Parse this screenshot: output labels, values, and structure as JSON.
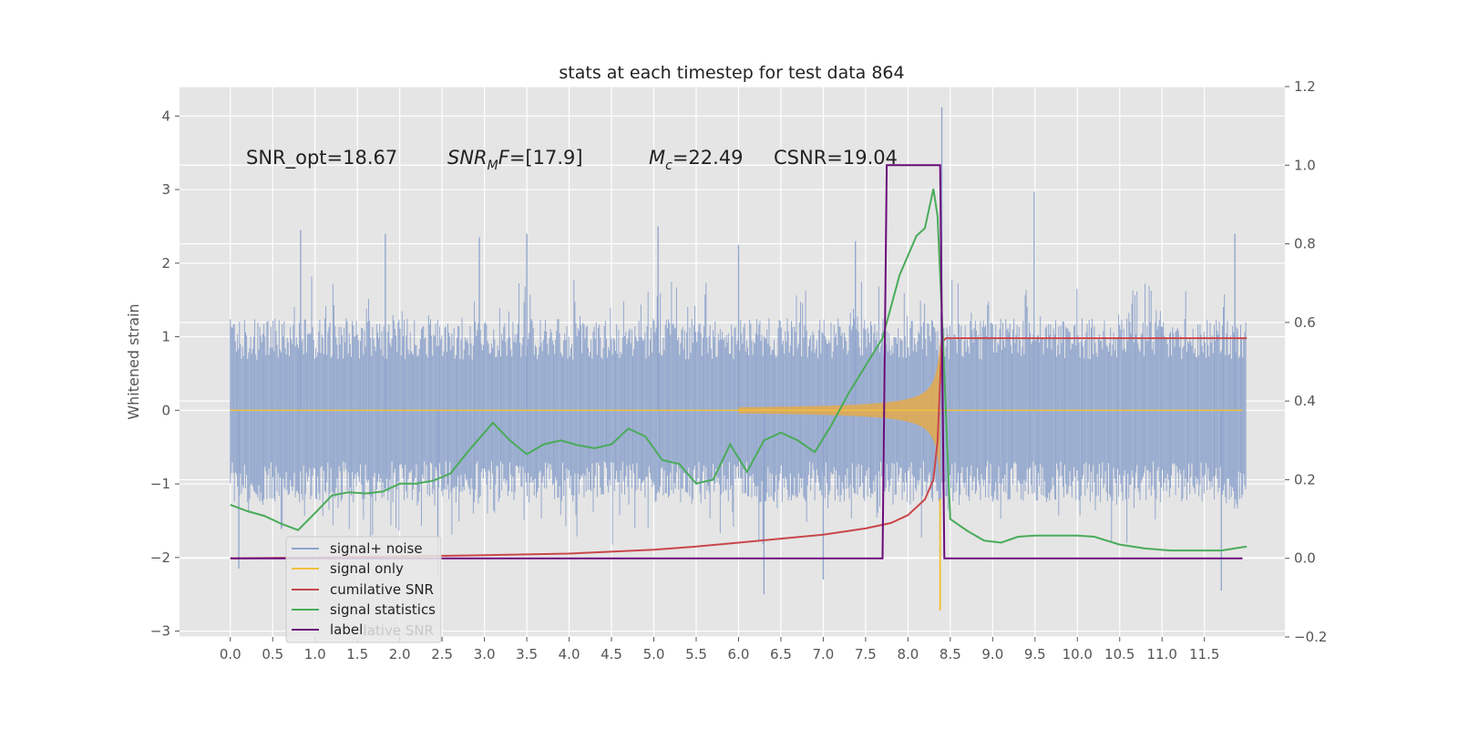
{
  "chart_data": {
    "type": "line",
    "title": "stats at each timestep for test data 864",
    "ylabel": "Whitened strain",
    "xlabel": "",
    "xlim": [
      -0.6,
      12.45
    ],
    "ylim": [
      -3.08,
      4.4
    ],
    "ylim_right": [
      -0.2,
      1.2
    ],
    "x_ticks": [
      "0.0",
      "0.5",
      "1.0",
      "1.5",
      "2.0",
      "2.5",
      "3.0",
      "3.5",
      "4.0",
      "4.5",
      "5.0",
      "5.5",
      "6.0",
      "6.5",
      "7.0",
      "7.5",
      "8.0",
      "8.5",
      "9.0",
      "9.5",
      "10.0",
      "10.5",
      "11.0",
      "11.5"
    ],
    "y_ticks": [
      "4",
      "3",
      "2",
      "1",
      "0",
      "−1",
      "−2",
      "−3"
    ],
    "y_ticks_right": [
      "1.2",
      "1.0",
      "0.8",
      "0.6",
      "0.4",
      "0.2",
      "0.0",
      "−0.2"
    ],
    "grid": true,
    "legend_position": "lower-left",
    "annotations": {
      "snr_opt": "SNR_opt=18.67",
      "snr_mf": "=[17.9]",
      "mc": "=22.49",
      "csnr": "CSNR=19.04"
    },
    "legend": [
      {
        "label": "signal+ noise",
        "color": "#8ea3cb"
      },
      {
        "label": "signal only",
        "color": "#f0c040"
      },
      {
        "label": "cumilative SNR",
        "color": "#c8474a"
      },
      {
        "label": "signal statistics",
        "color": "#4aab5a"
      },
      {
        "label": "label",
        "color": "#6a0a7a"
      }
    ],
    "legend_underlay": "cumilative SNR",
    "series": [
      {
        "name": "signal+ noise",
        "axis": "left",
        "color": "#8ea3cb",
        "description_values": {
          "t_start": 0.0,
          "t_end": 12.0,
          "typical_upper": 1.25,
          "typical_lower": -1.25
        },
        "spikes": [
          [
            0.83,
            2.45
          ],
          [
            1.83,
            2.4
          ],
          [
            2.94,
            2.35
          ],
          [
            3.5,
            2.4
          ],
          [
            5.05,
            2.5
          ],
          [
            6.0,
            2.25
          ],
          [
            7.38,
            2.3
          ],
          [
            8.4,
            4.12
          ],
          [
            9.49,
            2.97
          ],
          [
            11.86,
            2.4
          ],
          [
            6.3,
            -2.5
          ],
          [
            7.0,
            -2.3
          ],
          [
            11.7,
            -2.45
          ],
          [
            2.45,
            -2.25
          ],
          [
            0.1,
            -2.15
          ]
        ]
      },
      {
        "name": "signal only",
        "axis": "left",
        "color": "#f0c040",
        "chirp": {
          "t_merger": 8.38,
          "peak_amplitude": 1.25,
          "min": -2.72
        }
      },
      {
        "name": "cumilative SNR",
        "axis": "right",
        "color": "#c8474a",
        "x": [
          0.0,
          1.0,
          2.0,
          3.0,
          4.0,
          5.0,
          5.5,
          6.0,
          6.5,
          7.0,
          7.5,
          7.8,
          8.0,
          8.1,
          8.2,
          8.3,
          8.35,
          8.4,
          8.45,
          12.0
        ],
        "y": [
          0.0,
          0.002,
          0.005,
          0.008,
          0.012,
          0.022,
          0.03,
          0.04,
          0.05,
          0.06,
          0.076,
          0.09,
          0.11,
          0.13,
          0.15,
          0.2,
          0.3,
          0.55,
          0.56,
          0.56
        ]
      },
      {
        "name": "signal statistics",
        "axis": "right",
        "color": "#4aab5a",
        "x": [
          0.0,
          0.2,
          0.4,
          0.6,
          0.8,
          1.0,
          1.2,
          1.4,
          1.6,
          1.8,
          2.0,
          2.2,
          2.4,
          2.6,
          2.8,
          3.0,
          3.1,
          3.3,
          3.5,
          3.7,
          3.9,
          4.1,
          4.3,
          4.5,
          4.7,
          4.9,
          5.1,
          5.3,
          5.5,
          5.7,
          5.9,
          6.1,
          6.3,
          6.5,
          6.7,
          6.9,
          7.1,
          7.3,
          7.5,
          7.7,
          7.9,
          8.0,
          8.1,
          8.2,
          8.3,
          8.35,
          8.4,
          8.5,
          8.7,
          8.9,
          9.1,
          9.3,
          9.5,
          9.7,
          10.0,
          10.2,
          10.5,
          10.8,
          11.1,
          11.4,
          11.7,
          12.0
        ],
        "y": [
          0.136,
          0.12,
          0.108,
          0.088,
          0.072,
          0.115,
          0.16,
          0.168,
          0.165,
          0.17,
          0.19,
          0.19,
          0.198,
          0.216,
          0.27,
          0.32,
          0.345,
          0.3,
          0.265,
          0.29,
          0.3,
          0.288,
          0.28,
          0.29,
          0.33,
          0.31,
          0.25,
          0.24,
          0.19,
          0.2,
          0.29,
          0.22,
          0.3,
          0.32,
          0.3,
          0.27,
          0.34,
          0.42,
          0.49,
          0.56,
          0.72,
          0.77,
          0.82,
          0.84,
          0.94,
          0.87,
          0.62,
          0.1,
          0.07,
          0.045,
          0.04,
          0.055,
          0.058,
          0.058,
          0.058,
          0.055,
          0.035,
          0.025,
          0.02,
          0.02,
          0.02,
          0.03
        ]
      },
      {
        "name": "label",
        "axis": "right",
        "color": "#6a0a7a",
        "x": [
          0.0,
          7.7,
          7.75,
          8.38,
          8.43,
          11.95
        ],
        "y": [
          0.0,
          0.0,
          1.0,
          1.0,
          0.0,
          0.0
        ]
      }
    ]
  },
  "annotation_labels": {
    "snr_mf_main": "SNR",
    "snr_mf_sub": "M",
    "snr_mf_after": "F",
    "mc_main": "M",
    "mc_sub": "c"
  }
}
